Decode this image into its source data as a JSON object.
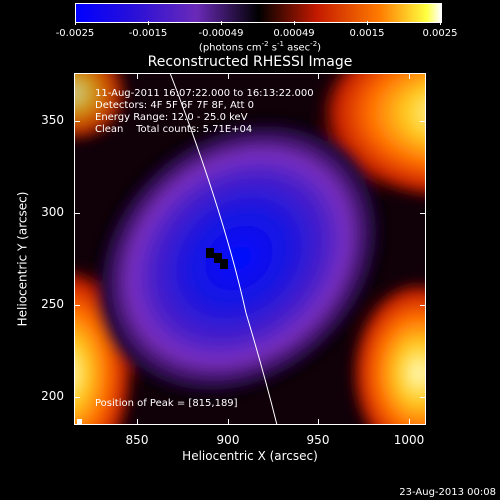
{
  "colorbar": {
    "ticks": [
      "-0.0025",
      "-0.0015",
      "-0.00049",
      "0.00049",
      "0.0015",
      "0.0025"
    ],
    "unit_main": "(photons cm",
    "unit_exp1": "-2",
    "unit_mid": " s",
    "unit_exp2": "-1",
    "unit_mid2": " asec",
    "unit_exp3": "-2",
    "unit_end": ")"
  },
  "title": "Reconstructed RHESSI Image",
  "info": {
    "time": "11-Aug-2011 16:07:22.000 to 16:13:22.000",
    "detectors": "Detectors: 4F 5F 6F 7F 8F, Att 0",
    "energy": "Energy Range: 12.0 - 25.0 keV",
    "clean": "Clean    Total counts: 5.71E+04"
  },
  "axes": {
    "xlabel": "Heliocentric X (arcsec)",
    "ylabel": "Heliocentric Y (arcsec)",
    "xticks": [
      "850",
      "900",
      "950",
      "1000"
    ],
    "yticks": [
      "350",
      "300",
      "250",
      "200"
    ]
  },
  "peak": "Position of Peak = [815,189]",
  "date": "23-Aug-2013 00:08",
  "chart_data": {
    "type": "heatmap",
    "title": "Reconstructed RHESSI Image",
    "xlabel": "Heliocentric X (arcsec)",
    "ylabel": "Heliocentric Y (arcsec)",
    "xlim": [
      818,
      1010
    ],
    "ylim": [
      183,
      375
    ],
    "xticks": [
      850,
      900,
      950,
      1000
    ],
    "yticks": [
      200,
      250,
      300,
      350
    ],
    "color_range": [
      -0.0025,
      0.0025
    ],
    "colormap": [
      "#0000ff",
      "#6a2ab8",
      "#000000",
      "#c41a00",
      "#ff7a00",
      "#ffff40",
      "#ffffff"
    ],
    "minimum_region_center": [
      897,
      275
    ],
    "peak_position": [
      815,
      189
    ]
  }
}
